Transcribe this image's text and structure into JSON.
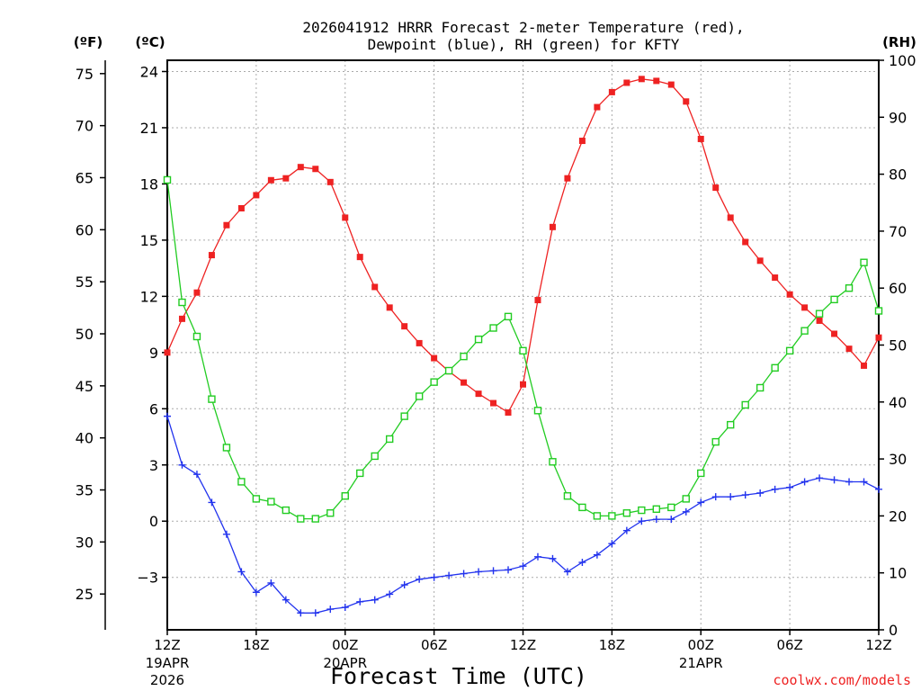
{
  "chart_data": {
    "type": "line",
    "title_line1": "2026041912 HRRR Forecast 2-meter Temperature (red),",
    "title_line2": "Dewpoint (blue), RH (green) for KFTY",
    "xlabel": "Forecast Time (UTC)",
    "watermark": "coolwx.com/models",
    "left_f_unit": "(ºF)",
    "left_c_unit": "(ºC)",
    "right_unit": "(RH)",
    "x_hours_range": [
      0,
      48
    ],
    "ylim_c": [
      -5.8,
      24.6
    ],
    "ylim_rh": [
      0,
      100
    ],
    "x_ticks": [
      {
        "hour": 0,
        "label": "12Z",
        "sub1": "19APR",
        "sub2": "2026"
      },
      {
        "hour": 6,
        "label": "18Z",
        "sub1": "",
        "sub2": ""
      },
      {
        "hour": 12,
        "label": "00Z",
        "sub1": "20APR",
        "sub2": ""
      },
      {
        "hour": 18,
        "label": "06Z",
        "sub1": "",
        "sub2": ""
      },
      {
        "hour": 24,
        "label": "12Z",
        "sub1": "",
        "sub2": ""
      },
      {
        "hour": 30,
        "label": "18Z",
        "sub1": "",
        "sub2": ""
      },
      {
        "hour": 36,
        "label": "00Z",
        "sub1": "21APR",
        "sub2": ""
      },
      {
        "hour": 42,
        "label": "06Z",
        "sub1": "",
        "sub2": ""
      },
      {
        "hour": 48,
        "label": "12Z",
        "sub1": "",
        "sub2": ""
      }
    ],
    "c_ticks": [
      {
        "value": 24,
        "label": "24"
      },
      {
        "value": 21,
        "label": "21"
      },
      {
        "value": 18,
        "label": "18"
      },
      {
        "value": 15,
        "label": "15"
      },
      {
        "value": 12,
        "label": "12"
      },
      {
        "value": 9,
        "label": "9"
      },
      {
        "value": 6,
        "label": "6"
      },
      {
        "value": 3,
        "label": "3"
      },
      {
        "value": 0,
        "label": "0"
      },
      {
        "value": -3,
        "label": "−3"
      }
    ],
    "f_ticks": [
      {
        "value": 75,
        "label": "75"
      },
      {
        "value": 70,
        "label": "70"
      },
      {
        "value": 65,
        "label": "65"
      },
      {
        "value": 60,
        "label": "60"
      },
      {
        "value": 55,
        "label": "55"
      },
      {
        "value": 50,
        "label": "50"
      },
      {
        "value": 45,
        "label": "45"
      },
      {
        "value": 40,
        "label": "40"
      },
      {
        "value": 35,
        "label": "35"
      },
      {
        "value": 30,
        "label": "30"
      },
      {
        "value": 25,
        "label": "25"
      }
    ],
    "rh_ticks": [
      {
        "value": 100,
        "label": "100"
      },
      {
        "value": 90,
        "label": "90"
      },
      {
        "value": 80,
        "label": "80"
      },
      {
        "value": 70,
        "label": "70"
      },
      {
        "value": 60,
        "label": "60"
      },
      {
        "value": 50,
        "label": "50"
      },
      {
        "value": 40,
        "label": "40"
      },
      {
        "value": 30,
        "label": "30"
      },
      {
        "value": 20,
        "label": "20"
      },
      {
        "value": 10,
        "label": "10"
      },
      {
        "value": 0,
        "label": "0"
      }
    ],
    "series": [
      {
        "name": "2-meter Temperature",
        "axis": "c",
        "color": "#ee2222",
        "marker": "filled-square",
        "values": [
          9.0,
          10.8,
          12.2,
          14.2,
          15.8,
          16.7,
          17.4,
          18.2,
          18.3,
          18.9,
          18.8,
          18.1,
          16.2,
          14.1,
          12.5,
          11.4,
          10.4,
          9.5,
          8.7,
          8.0,
          7.4,
          6.8,
          6.3,
          5.8,
          7.3,
          11.8,
          15.7,
          18.3,
          20.3,
          22.1,
          22.9,
          23.4,
          23.6,
          23.5,
          23.3,
          22.4,
          20.4,
          17.8,
          16.2,
          14.9,
          13.9,
          13.0,
          12.1,
          11.4,
          10.7,
          10.0,
          9.2,
          8.3,
          9.8
        ]
      },
      {
        "name": "Dewpoint",
        "axis": "c",
        "color": "#2233ee",
        "marker": "plus",
        "values": [
          5.6,
          3.0,
          2.5,
          1.0,
          -0.7,
          -2.7,
          -3.8,
          -3.3,
          -4.2,
          -4.9,
          -4.9,
          -4.7,
          -4.6,
          -4.3,
          -4.2,
          -3.9,
          -3.4,
          -3.1,
          -3.0,
          -2.9,
          -2.8,
          -2.7,
          -2.65,
          -2.6,
          -2.4,
          -1.9,
          -2.0,
          -2.7,
          -2.2,
          -1.8,
          -1.2,
          -0.5,
          0.0,
          0.1,
          0.1,
          0.5,
          1.0,
          1.3,
          1.3,
          1.4,
          1.5,
          1.7,
          1.8,
          2.1,
          2.3,
          2.2,
          2.1,
          2.1,
          1.7
        ]
      },
      {
        "name": "RH",
        "axis": "rh",
        "color": "#22cc22",
        "marker": "open-square",
        "values": [
          79,
          57.5,
          51.5,
          40.5,
          32,
          26,
          23,
          22.5,
          21,
          19.5,
          19.5,
          20.5,
          23.5,
          27.5,
          30.5,
          33.5,
          37.5,
          41,
          43.5,
          45.5,
          48,
          51,
          53,
          55,
          49,
          38.5,
          29.5,
          23.5,
          21.5,
          20,
          20,
          20.5,
          21,
          21.2,
          21.5,
          23,
          27.5,
          33,
          36,
          39.5,
          42.5,
          46,
          49,
          52.5,
          55.5,
          58,
          60,
          64.5,
          56
        ]
      }
    ]
  }
}
